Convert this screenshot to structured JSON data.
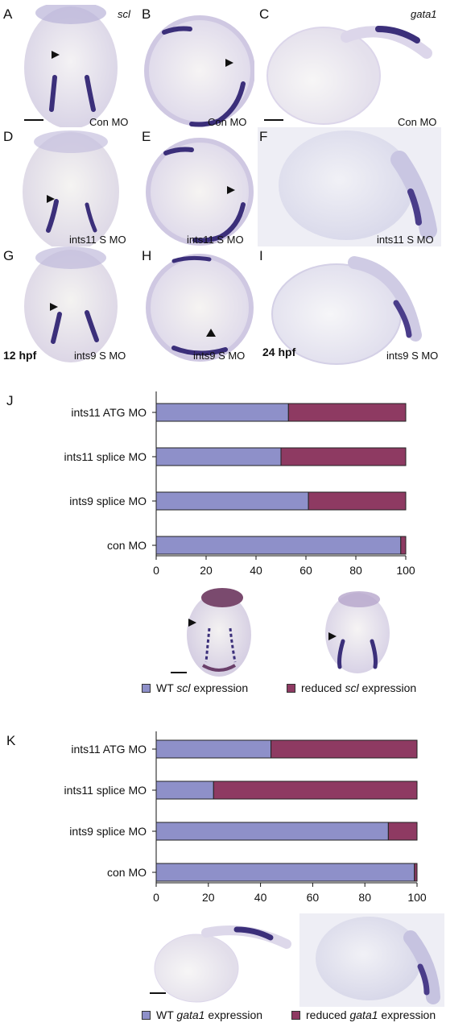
{
  "figure": {
    "panels_top": [
      {
        "letter": "A",
        "caption": "Con MO",
        "gene": "scl"
      },
      {
        "letter": "B",
        "caption": "Con MO"
      },
      {
        "letter": "C",
        "caption": "Con MO",
        "gene": "gata1"
      },
      {
        "letter": "D",
        "caption": "ints11 S MO"
      },
      {
        "letter": "E",
        "caption": "ints11 S MO"
      },
      {
        "letter": "F",
        "caption": "ints11 S MO"
      },
      {
        "letter": "G",
        "caption": "ints9 S MO",
        "stage": "12 hpf"
      },
      {
        "letter": "H",
        "caption": "ints9 S MO"
      },
      {
        "letter": "I",
        "caption": "ints9 S MO",
        "stage": "24 hpf"
      }
    ],
    "panel_J_letter": "J",
    "panel_K_letter": "K"
  },
  "legend_J": {
    "wt_prefix": "WT ",
    "wt_gene": "scl",
    "wt_suffix": " expression",
    "red_prefix": "reduced ",
    "red_gene": "scl",
    "red_suffix": " expression"
  },
  "legend_K": {
    "wt_prefix": "WT ",
    "wt_gene": "gata1",
    "wt_suffix": " expression",
    "red_prefix": "reduced ",
    "red_gene": "gata1",
    "red_suffix": " expression"
  },
  "colors": {
    "wt": "#8e90c9",
    "reduced": "#8e3a62",
    "stain": "#3b2f7a"
  },
  "chart_data": [
    {
      "type": "bar",
      "orientation": "horizontal-stacked",
      "categories": [
        "ints11 ATG MO",
        "ints11 splice MO",
        "ints9 splice MO",
        "con MO"
      ],
      "series": [
        {
          "name": "WT scl expression",
          "values": [
            53,
            50,
            61,
            98
          ]
        },
        {
          "name": "reduced scl expression",
          "values": [
            47,
            50,
            39,
            2
          ]
        }
      ],
      "xlim": [
        0,
        100
      ],
      "xticks": [
        0,
        20,
        40,
        60,
        80,
        100
      ],
      "grid": false,
      "legend": "bottom"
    },
    {
      "type": "bar",
      "orientation": "horizontal-stacked",
      "categories": [
        "ints11 ATG MO",
        "ints11 splice MO",
        "ints9 splice MO",
        "con MO"
      ],
      "series": [
        {
          "name": "WT gata1 expression",
          "values": [
            44,
            22,
            89,
            99
          ]
        },
        {
          "name": "reduced gata1 expression",
          "values": [
            56,
            78,
            11,
            1
          ]
        }
      ],
      "xlim": [
        0,
        100
      ],
      "xticks": [
        0,
        20,
        40,
        60,
        80,
        100
      ],
      "grid": false,
      "legend": "bottom"
    }
  ]
}
